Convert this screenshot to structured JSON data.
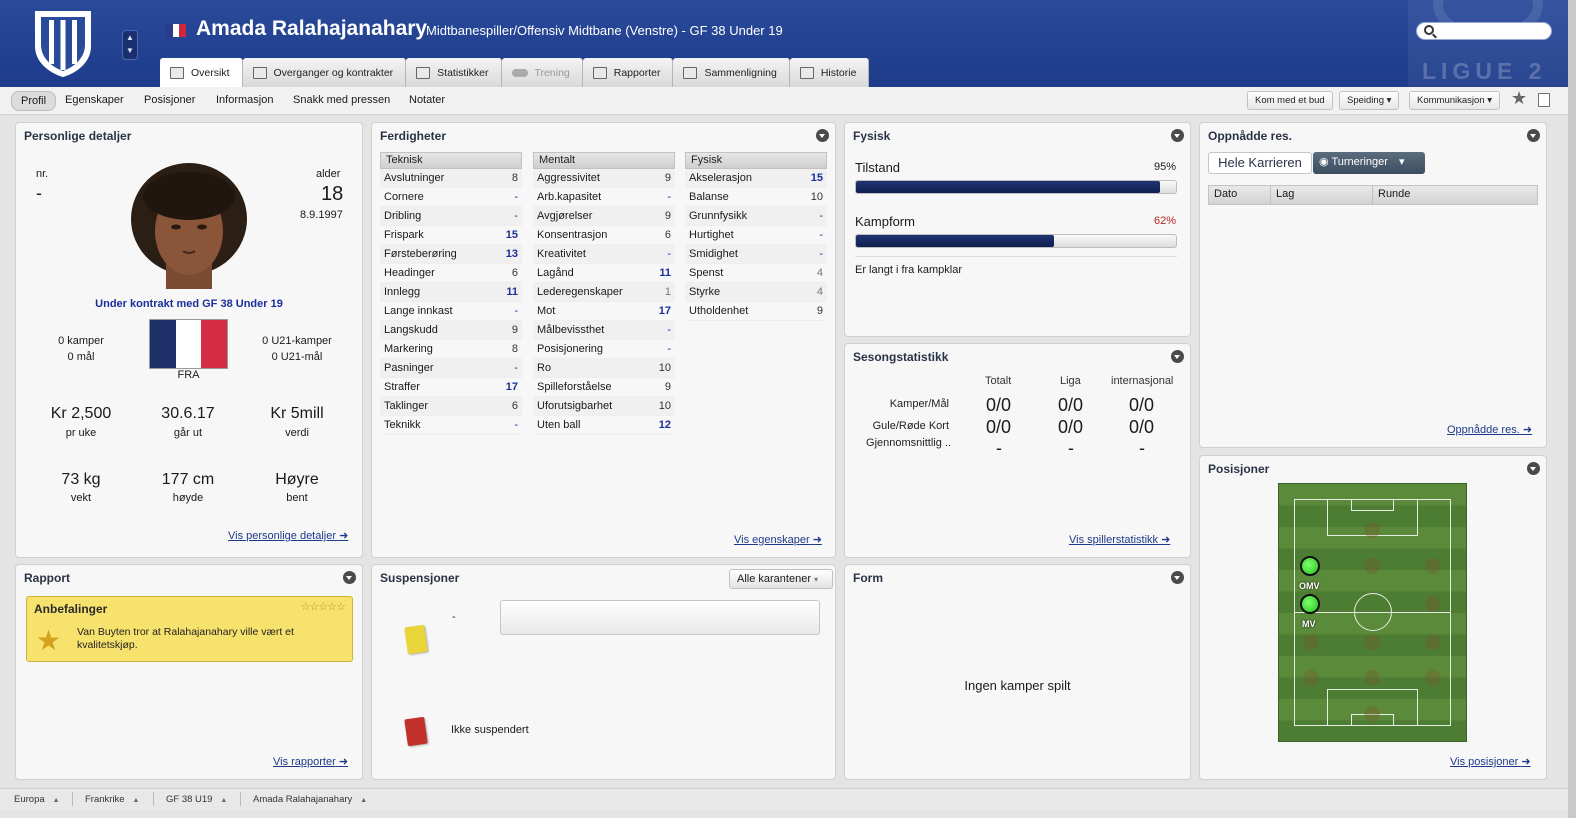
{
  "header": {
    "player_name": "Amada Ralahajanahary",
    "player_role": "Midtbanespiller/Offensiv Midtbane (Venstre) - GF 38 Under 19",
    "league_logo_text": "LIGUE 2",
    "tabs": [
      {
        "label": "Oversikt"
      },
      {
        "label": "Overganger og kontrakter"
      },
      {
        "label": "Statistikker"
      },
      {
        "label": "Trening"
      },
      {
        "label": "Rapporter"
      },
      {
        "label": "Sammenligning"
      },
      {
        "label": "Historie"
      }
    ]
  },
  "subnav": {
    "items": [
      "Profil",
      "Egenskaper",
      "Posisjoner",
      "Informasjon",
      "Snakk med pressen",
      "Notater"
    ],
    "buttons": {
      "bid": "Kom med et bud",
      "scouting": "Speiding",
      "communication": "Kommunikasjon"
    }
  },
  "personal": {
    "title": "Personlige detaljer",
    "nr_label": "nr.",
    "nr_value": "-",
    "age_label": "alder",
    "age_value": "18",
    "dob": "8.9.1997",
    "contract": "Under kontrakt med GF 38 Under 19",
    "matches": "0 kamper",
    "goals": "0 mål",
    "u21_matches": "0 U21-kamper",
    "u21_goals": "0 U21-mål",
    "nationality": "FRA",
    "wage_value": "Kr 2,500",
    "wage_label": "pr uke",
    "expires_value": "30.6.17",
    "expires_label": "går ut",
    "worth_value": "Kr 5mill",
    "worth_label": "verdi",
    "weight_value": "73 kg",
    "weight_label": "vekt",
    "height_value": "177 cm",
    "height_label": "høyde",
    "foot_value": "Høyre",
    "foot_label": "bent",
    "link": "Vis personlige detaljer"
  },
  "skills": {
    "title": "Ferdigheter",
    "technical": {
      "header": "Teknisk",
      "rows": [
        {
          "name": "Avslutninger",
          "value": "8"
        },
        {
          "name": "Cornere",
          "value": "-"
        },
        {
          "name": "Dribling",
          "value": "-"
        },
        {
          "name": "Frispark",
          "value": "15"
        },
        {
          "name": "Førsteberøring",
          "value": "13"
        },
        {
          "name": "Headinger",
          "value": "6"
        },
        {
          "name": "Innlegg",
          "value": "11"
        },
        {
          "name": "Lange innkast",
          "value": "-"
        },
        {
          "name": "Langskudd",
          "value": "9"
        },
        {
          "name": "Markering",
          "value": "8"
        },
        {
          "name": "Pasninger",
          "value": "-"
        },
        {
          "name": "Straffer",
          "value": "17"
        },
        {
          "name": "Taklinger",
          "value": "6"
        },
        {
          "name": "Teknikk",
          "value": "-"
        }
      ]
    },
    "mental": {
      "header": "Mentalt",
      "rows": [
        {
          "name": "Aggressivitet",
          "value": "9"
        },
        {
          "name": "Arb.kapasitet",
          "value": "-"
        },
        {
          "name": "Avgjørelser",
          "value": "9"
        },
        {
          "name": "Konsentrasjon",
          "value": "6"
        },
        {
          "name": "Kreativitet",
          "value": "-"
        },
        {
          "name": "Lagånd",
          "value": "11"
        },
        {
          "name": "Lederegenskaper",
          "value": "1"
        },
        {
          "name": "Mot",
          "value": "17"
        },
        {
          "name": "Målbevissthet",
          "value": "-"
        },
        {
          "name": "Posisjonering",
          "value": "-"
        },
        {
          "name": "Ro",
          "value": "10"
        },
        {
          "name": "Spilleforståelse",
          "value": "9"
        },
        {
          "name": "Uforutsigbarhet",
          "value": "10"
        },
        {
          "name": "Uten ball",
          "value": "12"
        }
      ]
    },
    "physical": {
      "header": "Fysisk",
      "rows": [
        {
          "name": "Akselerasjon",
          "value": "15"
        },
        {
          "name": "Balanse",
          "value": "10"
        },
        {
          "name": "Grunnfysikk",
          "value": "-"
        },
        {
          "name": "Hurtighet",
          "value": "-"
        },
        {
          "name": "Smidighet",
          "value": "-"
        },
        {
          "name": "Spenst",
          "value": "4"
        },
        {
          "name": "Styrke",
          "value": "4"
        },
        {
          "name": "Utholdenhet",
          "value": "9"
        }
      ]
    },
    "link": "Vis egenskaper"
  },
  "fitness": {
    "title": "Fysisk",
    "condition_label": "Tilstand",
    "condition_value": "95%",
    "condition_pct": 95,
    "form_label": "Kampform",
    "form_value": "62%",
    "form_pct": 62,
    "note": "Er langt i fra kampklar"
  },
  "season": {
    "title": "Sesongstatistikk",
    "columns": [
      "Totalt",
      "Liga",
      "internasjonal"
    ],
    "rows": [
      {
        "label": "Kamper/Mål",
        "values": [
          "0/0",
          "0/0",
          "0/0"
        ]
      },
      {
        "label": "Gule/Røde Kort",
        "values": [
          "0/0",
          "0/0",
          "0/0"
        ]
      },
      {
        "label": "Gjennomsnittlig ..",
        "values": [
          "-",
          "-",
          "-"
        ]
      }
    ],
    "link": "Vis spillerstatistikk"
  },
  "achievements": {
    "title": "Oppnådde res.",
    "career_btn": "Hele Karrieren",
    "tournament_btn": "Turneringer",
    "columns": [
      "Dato",
      "Lag",
      "Runde"
    ],
    "link": "Oppnådde res."
  },
  "report": {
    "title": "Rapport",
    "rec_title": "Anbefalinger",
    "rec_text": "Van Buyten tror at Ralahajanahary ville vært et kvalitetskjøp.",
    "rec_stars": "☆☆☆☆☆",
    "link": "Vis rapporter"
  },
  "suspensions": {
    "title": "Suspensjoner",
    "filter": "Alle karantener",
    "yellow_text": "-",
    "red_text": "Ikke suspendert"
  },
  "form": {
    "title": "Form",
    "empty_text": "Ingen kamper spilt"
  },
  "positions": {
    "title": "Posisjoner",
    "labels": [
      "OMV",
      "MV"
    ],
    "link": "Vis posisjoner"
  },
  "footer": {
    "crumbs": [
      "Europa",
      "Frankrike",
      "GF 38 U19",
      "Amada Ralahajanahary"
    ]
  },
  "colors": {
    "header_blue": "#1d3b8a",
    "attr_blue": "#1a2f9a",
    "bar_fill": "#0f1f4d",
    "form_value": "#b3261e",
    "rec_yellow": "#f7e26d"
  }
}
